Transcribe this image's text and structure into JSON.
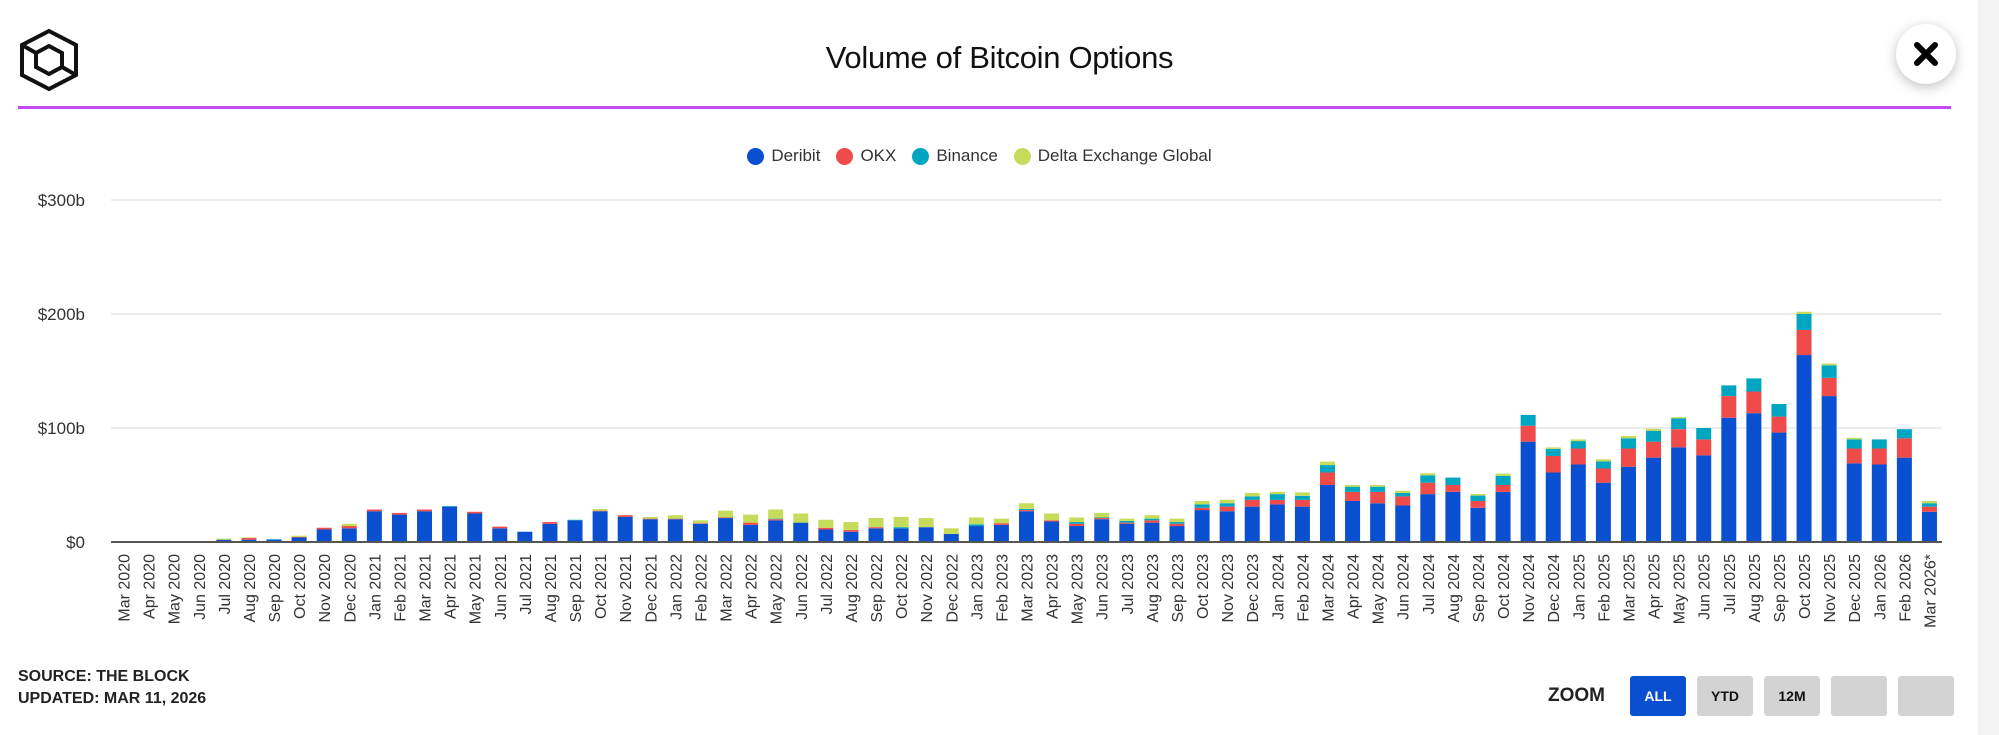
{
  "header": {
    "title": "Volume of Bitcoin Options",
    "logo": "the-block-logo",
    "close_icon": "close-icon"
  },
  "footer": {
    "source": "SOURCE: THE BLOCK",
    "updated": "UPDATED: MAR 11, 2026"
  },
  "zoom": {
    "label": "ZOOM",
    "buttons": [
      "ALL",
      "YTD",
      "12M",
      "",
      ""
    ],
    "active": "ALL"
  },
  "chart_data": {
    "type": "bar",
    "stacked": true,
    "title": "Volume of Bitcoin Options",
    "xlabel": "",
    "ylabel": "",
    "ylim": [
      0,
      300
    ],
    "yticks": [
      {
        "v": 0,
        "label": "$0"
      },
      {
        "v": 100,
        "label": "$100b"
      },
      {
        "v": 200,
        "label": "$200b"
      },
      {
        "v": 300,
        "label": "$300b"
      }
    ],
    "grid": true,
    "legend_position": "top-center",
    "categories": [
      "Mar 2020",
      "Apr 2020",
      "May 2020",
      "Jun 2020",
      "Jul 2020",
      "Aug 2020",
      "Sep 2020",
      "Oct 2020",
      "Nov 2020",
      "Dec 2020",
      "Jan 2021",
      "Feb 2021",
      "Mar 2021",
      "Apr 2021",
      "May 2021",
      "Jun 2021",
      "Jul 2021",
      "Aug 2021",
      "Sep 2021",
      "Oct 2021",
      "Nov 2021",
      "Dec 2021",
      "Jan 2022",
      "Feb 2022",
      "Mar 2022",
      "Apr 2022",
      "May 2022",
      "Jun 2022",
      "Jul 2022",
      "Aug 2022",
      "Sep 2022",
      "Oct 2022",
      "Nov 2022",
      "Dec 2022",
      "Jan 2023",
      "Feb 2023",
      "Mar 2023",
      "Apr 2023",
      "May 2023",
      "Jun 2023",
      "Jul 2023",
      "Aug 2023",
      "Sep 2023",
      "Oct 2023",
      "Nov 2023",
      "Dec 2023",
      "Jan 2024",
      "Feb 2024",
      "Mar 2024",
      "Apr 2024",
      "May 2024",
      "Jun 2024",
      "Jul 2024",
      "Aug 2024",
      "Sep 2024",
      "Oct 2024",
      "Nov 2024",
      "Dec 2024",
      "Jan 2025",
      "Feb 2025",
      "Mar 2025",
      "Apr 2025",
      "May 2025",
      "Jun 2025",
      "Jul 2025",
      "Aug 2025",
      "Sep 2025",
      "Oct 2025",
      "Nov 2025",
      "Dec 2025",
      "Jan 2026",
      "Feb 2026",
      "Mar 2026*"
    ],
    "series": [
      {
        "name": "Deribit",
        "color": "#0b4fd1",
        "values": [
          0,
          0,
          0,
          0,
          2,
          2,
          2,
          4,
          11,
          12,
          27,
          24,
          27,
          31,
          25,
          12,
          9,
          16,
          19,
          27,
          22,
          20,
          20,
          16,
          21,
          15,
          19,
          17,
          11,
          9,
          12,
          12,
          13,
          7,
          14,
          15,
          27,
          18,
          14,
          20,
          16,
          17,
          14,
          28,
          27,
          31,
          33,
          31,
          50,
          36,
          34,
          32,
          42,
          44,
          30,
          44,
          88,
          61,
          68,
          52,
          66,
          74,
          83,
          76,
          109,
          113,
          96,
          164,
          128,
          69,
          68,
          74,
          26.5
        ]
      },
      {
        "name": "OKX",
        "color": "#f04b4b",
        "values": [
          0,
          0,
          0,
          0,
          0,
          1.5,
          0,
          0.5,
          1.5,
          2,
          1.5,
          1.5,
          1.5,
          0,
          1.5,
          1.5,
          0,
          1.5,
          0,
          0.5,
          1.5,
          0.5,
          0.5,
          0.5,
          0.5,
          2,
          1,
          0,
          1.5,
          1.5,
          1,
          0,
          0,
          0,
          0,
          1.5,
          1,
          1,
          2,
          1,
          1,
          2,
          2,
          2,
          4,
          6,
          4,
          6,
          11,
          8,
          10,
          8,
          10,
          6,
          6,
          6,
          14,
          14.5,
          14,
          12.5,
          16,
          14,
          16,
          14,
          19,
          19,
          14,
          22,
          16,
          13,
          14,
          17,
          4.5
        ]
      },
      {
        "name": "Binance",
        "color": "#00a5c2",
        "values": [
          0,
          0,
          0,
          0,
          0,
          0,
          0.5,
          0,
          0,
          0,
          0,
          0,
          0,
          0.5,
          0,
          0,
          0,
          0,
          0.5,
          0,
          0,
          0,
          0,
          0,
          0,
          0,
          0.5,
          0,
          0,
          0,
          0,
          1,
          0,
          0,
          1.5,
          0,
          1,
          0,
          1.5,
          0.5,
          1.5,
          1.5,
          1.5,
          3,
          3,
          3,
          5,
          3.5,
          6.5,
          4.5,
          4.5,
          3,
          6.5,
          6.5,
          4.7,
          8,
          9.5,
          6.2,
          6.5,
          6.2,
          9,
          9.6,
          9.5,
          10,
          9.4,
          11.5,
          11,
          14,
          11,
          8,
          8,
          8,
          3
        ]
      },
      {
        "name": "Delta Exchange Global",
        "color": "#c5dc5a",
        "values": [
          0,
          0,
          0,
          0,
          1,
          0.5,
          0,
          1,
          0,
          2,
          0,
          0,
          0,
          0,
          0,
          0,
          0,
          0,
          0,
          1.5,
          0,
          1.5,
          3,
          2.5,
          6,
          7,
          8,
          8,
          7,
          7,
          8,
          9,
          8,
          5,
          6,
          4,
          5,
          6,
          4,
          4,
          2,
          3,
          3,
          3,
          3,
          3,
          2,
          3,
          3,
          1.5,
          1.5,
          2,
          1.8,
          0,
          1.4,
          2,
          0,
          1.3,
          1.5,
          1.8,
          2,
          1.8,
          1,
          0,
          0,
          0,
          0,
          2,
          1.6,
          1.4,
          0,
          0,
          2
        ]
      }
    ]
  }
}
